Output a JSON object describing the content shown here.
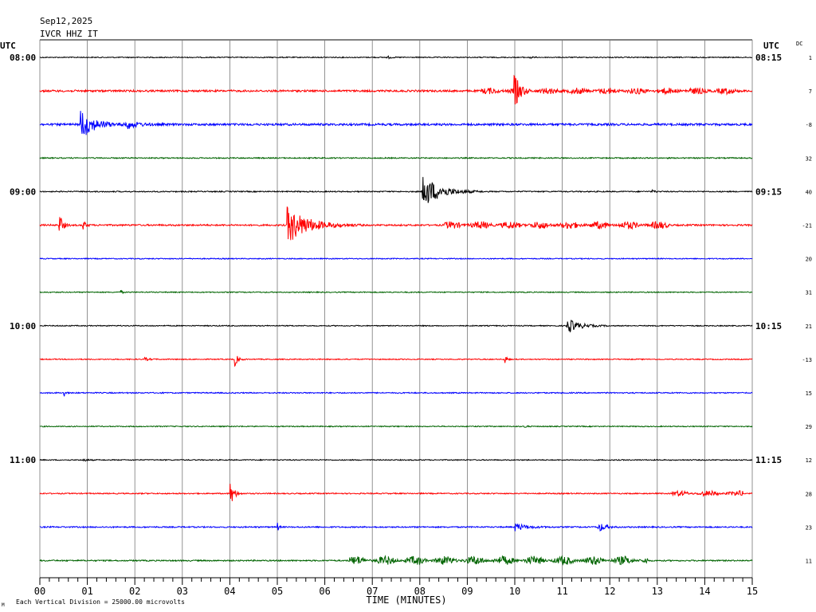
{
  "header": {
    "date": "Sep12,2025",
    "station": "IVCR HHZ IT",
    "utc_left": "UTC",
    "utc_right": "UTC",
    "dc_label": "DC"
  },
  "footer": {
    "scale_note": "Each Vertical Division = 25000.00 microvolts",
    "mark": "M"
  },
  "chart_data": {
    "type": "line",
    "subtype": "helicorder",
    "xlabel": "TIME (MINUTES)",
    "x_ticks": [
      "00",
      "01",
      "02",
      "03",
      "04",
      "05",
      "06",
      "07",
      "08",
      "09",
      "10",
      "11",
      "12",
      "13",
      "14",
      "15"
    ],
    "xlim": [
      0,
      15
    ],
    "grid": true,
    "trace_colors": [
      "#000000",
      "#ff0000",
      "#0000ff",
      "#006400"
    ],
    "left_time_labels": [
      "08:00",
      "09:00",
      "10:00",
      "11:00"
    ],
    "right_time_labels": [
      "08:15",
      "09:15",
      "10:15",
      "11:15"
    ],
    "dc_offsets": [
      "1",
      "7",
      "-8",
      "32",
      "40",
      "-21",
      "20",
      "31",
      "21",
      "-13",
      "15",
      "29",
      "12",
      "28",
      "23",
      "11"
    ],
    "rows": [
      {
        "noise": 0.6,
        "events": [
          {
            "t": 7.3,
            "amp": 2,
            "dur": 0.3
          },
          {
            "t": 10.3,
            "amp": 2,
            "dur": 0.2
          }
        ]
      },
      {
        "noise": 1.2,
        "events": [
          {
            "t": 9.98,
            "amp": 24,
            "dur": 0.35
          },
          {
            "t": 9.3,
            "amp": 3,
            "dur": 5.5,
            "burst": true
          }
        ]
      },
      {
        "noise": 1.3,
        "events": [
          {
            "t": 0.85,
            "amp": 20,
            "dur": 1.0
          },
          {
            "t": 1.8,
            "amp": 6,
            "dur": 0.9
          }
        ]
      },
      {
        "noise": 0.7,
        "events": []
      },
      {
        "noise": 0.7,
        "events": [
          {
            "t": 8.05,
            "amp": 22,
            "dur": 1.3
          },
          {
            "t": 12.9,
            "amp": 2,
            "dur": 0.2
          }
        ]
      },
      {
        "noise": 1.0,
        "events": [
          {
            "t": 0.4,
            "amp": 18,
            "dur": 0.25
          },
          {
            "t": 0.9,
            "amp": 8,
            "dur": 0.2
          },
          {
            "t": 5.2,
            "amp": 24,
            "dur": 1.6
          },
          {
            "t": 8.5,
            "amp": 4,
            "dur": 4.8,
            "burst": true
          }
        ]
      },
      {
        "noise": 0.6,
        "events": []
      },
      {
        "noise": 0.6,
        "events": [
          {
            "t": 1.7,
            "amp": 4,
            "dur": 0.1
          }
        ]
      },
      {
        "noise": 0.6,
        "events": [
          {
            "t": 11.1,
            "amp": 10,
            "dur": 0.9
          }
        ]
      },
      {
        "noise": 0.6,
        "events": [
          {
            "t": 4.1,
            "amp": 9,
            "dur": 0.25
          },
          {
            "t": 9.78,
            "amp": 8,
            "dur": 0.15
          },
          {
            "t": 2.2,
            "amp": 2,
            "dur": 0.4
          }
        ]
      },
      {
        "noise": 0.7,
        "events": [
          {
            "t": 0.5,
            "amp": 8,
            "dur": 0.12
          }
        ]
      },
      {
        "noise": 0.6,
        "events": [
          {
            "t": 10.2,
            "amp": 2,
            "dur": 0.2
          }
        ]
      },
      {
        "noise": 0.6,
        "events": [
          {
            "t": 0.9,
            "amp": 2,
            "dur": 0.3
          }
        ]
      },
      {
        "noise": 0.7,
        "events": [
          {
            "t": 4.0,
            "amp": 18,
            "dur": 0.3
          },
          {
            "t": 13.3,
            "amp": 3,
            "dur": 1.5,
            "burst": true
          }
        ]
      },
      {
        "noise": 0.8,
        "events": [
          {
            "t": 5.0,
            "amp": 7,
            "dur": 0.1
          },
          {
            "t": 10.0,
            "amp": 5,
            "dur": 0.9
          },
          {
            "t": 11.75,
            "amp": 7,
            "dur": 0.5
          }
        ]
      },
      {
        "noise": 0.8,
        "events": [
          {
            "t": 6.5,
            "amp": 5,
            "dur": 6.3,
            "burst": true
          }
        ]
      }
    ]
  }
}
